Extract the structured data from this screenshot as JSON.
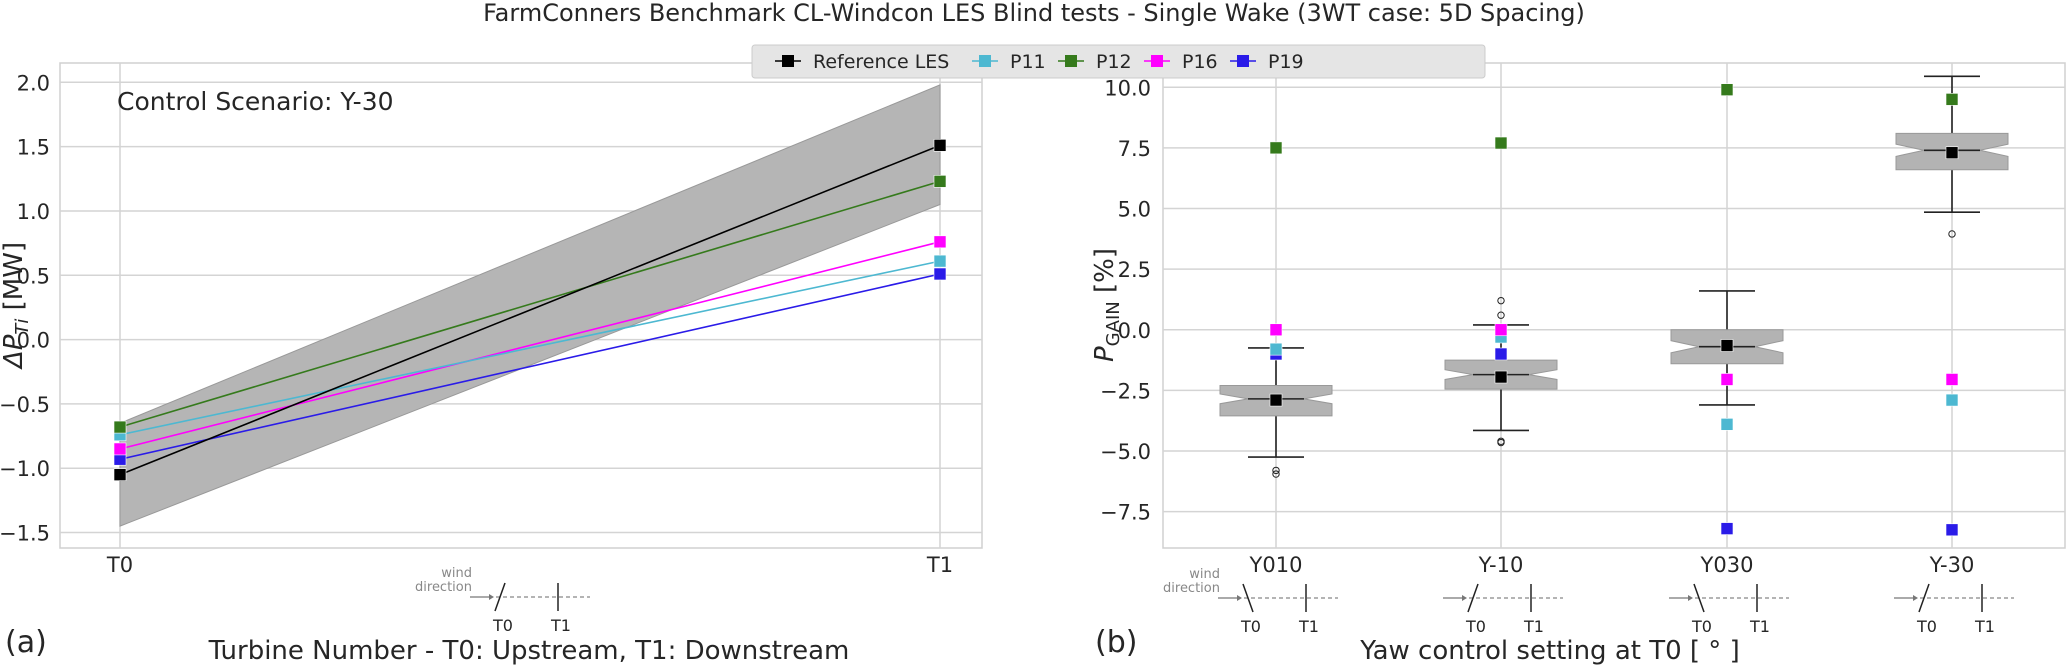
{
  "figure": {
    "title": "FarmConners Benchmark CL-Windcon LES Blind tests - Single Wake (3WT case: 5D Spacing)",
    "panel_a_label": "(a)",
    "panel_b_label": "(b)"
  },
  "legend": {
    "entries": [
      {
        "name": "Reference LES",
        "color": "#000000"
      },
      {
        "name": "P11",
        "color": "#4db8d1"
      },
      {
        "name": "P12",
        "color": "#357a1c"
      },
      {
        "name": "P16",
        "color": "#ff00ff"
      },
      {
        "name": "P19",
        "color": "#2a1be8"
      }
    ]
  },
  "schematic": {
    "wind_label_line1": "wind",
    "wind_label_line2": "direction",
    "t0": "T0",
    "t1": "T1"
  },
  "chart_data": [
    {
      "type": "line",
      "annotation": "Control Scenario: Y-30",
      "categories": [
        "T0",
        "T1"
      ],
      "xlabel": "Turbine Number - T0: Upstream, T1: Downstream",
      "ylabel": "ΔP_Ti [MW]",
      "ylabel_main": "ΔP",
      "ylabel_sub": "Ti",
      "ylabel_unit": " [MW]",
      "ylim": [
        -1.62,
        2.15
      ],
      "yticks": [
        -1.5,
        -1.0,
        -0.5,
        0.0,
        0.5,
        1.0,
        1.5,
        2.0
      ],
      "ytick_labels": [
        "−1.5",
        "−1.0",
        "−0.5",
        "0.0",
        "0.5",
        "1.0",
        "1.5",
        "2.0"
      ],
      "grid": true,
      "band": {
        "name": "Reference LES spread",
        "lower": [
          -1.45,
          1.05
        ],
        "upper": [
          -0.65,
          1.98
        ],
        "color": "#b5b5b5"
      },
      "series": [
        {
          "name": "Reference LES",
          "color": "#000000",
          "values": [
            -1.05,
            1.51
          ]
        },
        {
          "name": "P12",
          "color": "#357a1c",
          "values": [
            -0.68,
            1.23
          ]
        },
        {
          "name": "P11",
          "color": "#4db8d1",
          "values": [
            -0.74,
            0.61
          ]
        },
        {
          "name": "P16",
          "color": "#ff00ff",
          "values": [
            -0.85,
            0.76
          ]
        },
        {
          "name": "P19",
          "color": "#2a1be8",
          "values": [
            -0.93,
            0.51
          ]
        }
      ]
    },
    {
      "type": "box",
      "categories": [
        "Y010",
        "Y-10",
        "Y030",
        "Y-30"
      ],
      "xlabel": "Yaw control setting at T0 [ ° ]",
      "ylabel": "P_GAIN [%]",
      "ylabel_main": "P",
      "ylabel_sub": "GAIN",
      "ylabel_unit": "  [%]",
      "ylim": [
        -9.0,
        11.0
      ],
      "yticks": [
        -7.5,
        -5.0,
        -2.5,
        0.0,
        2.5,
        5.0,
        7.5,
        10.0
      ],
      "ytick_labels": [
        "−7.5",
        "−5.0",
        "−2.5",
        "0.0",
        "2.5",
        "5.0",
        "7.5",
        "10.0"
      ],
      "grid": true,
      "boxes": [
        {
          "q1": -3.55,
          "median": -2.85,
          "q3": -2.3,
          "notch_low": -3.05,
          "notch_high": -2.65,
          "whisker_low": -5.25,
          "whisker_high": -0.75,
          "fliers": [
            -5.8,
            -5.95
          ]
        },
        {
          "q1": -2.45,
          "median": -1.85,
          "q3": -1.25,
          "notch_low": -2.05,
          "notch_high": -1.65,
          "whisker_low": -4.15,
          "whisker_high": 0.2,
          "fliers": [
            0.6,
            1.2,
            -4.6,
            -4.65
          ]
        },
        {
          "q1": -1.4,
          "median": -0.7,
          "q3": 0.0,
          "notch_low": -0.95,
          "notch_high": -0.45,
          "whisker_low": -3.1,
          "whisker_high": 1.6,
          "fliers": []
        },
        {
          "q1": 6.6,
          "median": 7.4,
          "q3": 8.1,
          "notch_low": 7.15,
          "notch_high": 7.65,
          "whisker_low": 4.85,
          "whisker_high": 10.45,
          "fliers": [
            3.95
          ]
        }
      ],
      "series": [
        {
          "name": "Reference LES",
          "color": "#000000",
          "values": [
            -2.9,
            -1.95,
            -0.65,
            7.3
          ]
        },
        {
          "name": "P12",
          "color": "#357a1c",
          "values": [
            7.5,
            7.7,
            9.9,
            9.5
          ]
        },
        {
          "name": "P11",
          "color": "#4db8d1",
          "values": [
            -0.8,
            -0.3,
            -3.9,
            -2.9
          ]
        },
        {
          "name": "P16",
          "color": "#ff00ff",
          "values": [
            0.0,
            0.0,
            -2.05,
            -2.05
          ]
        },
        {
          "name": "P19",
          "color": "#2a1be8",
          "values": [
            -1.0,
            -1.0,
            -8.2,
            -8.25
          ]
        }
      ],
      "schematic_yaw": [
        "positive",
        "negative",
        "positive",
        "negative"
      ]
    }
  ]
}
